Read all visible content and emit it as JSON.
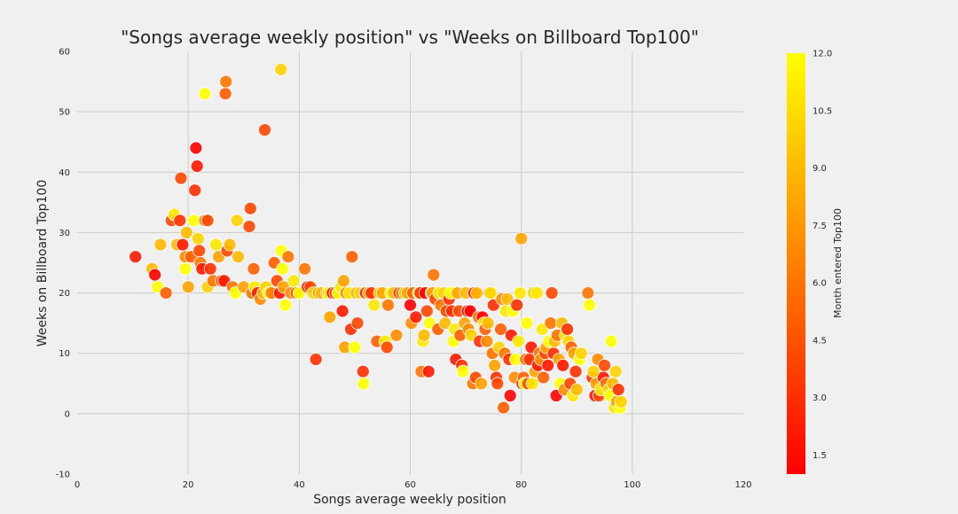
{
  "chart_data": {
    "type": "scatter",
    "title": "\"Songs average weekly position\" vs \"Weeks on Billboard Top100\"",
    "xlabel": "Songs average weekly position",
    "ylabel": "Weeks on Billboard Top100",
    "xlim": [
      0,
      120
    ],
    "ylim": [
      -10,
      60
    ],
    "xticks": [
      0,
      20,
      40,
      60,
      80,
      100,
      120
    ],
    "yticks": [
      -10,
      0,
      10,
      20,
      30,
      40,
      50,
      60
    ],
    "grid": true,
    "colorbar": {
      "label": "Month entered Top100",
      "range": [
        1,
        12
      ],
      "ticks": [
        "1.5",
        "3.0",
        "4.5",
        "6.0",
        "7.5",
        "9.0",
        "10.5",
        "12.0"
      ],
      "tick_values": [
        1.5,
        3.0,
        4.5,
        6.0,
        7.5,
        9.0,
        10.5,
        12.0
      ],
      "colormap": "autumn",
      "colors": [
        "#ff0000",
        "#ffff00"
      ]
    },
    "points": [
      [
        10.5,
        26,
        2
      ],
      [
        13.5,
        24,
        9
      ],
      [
        14,
        23,
        1
      ],
      [
        14.5,
        21,
        12
      ],
      [
        15,
        28,
        9
      ],
      [
        16,
        20,
        5
      ],
      [
        17,
        32,
        4
      ],
      [
        17.5,
        33,
        11
      ],
      [
        18,
        28,
        9
      ],
      [
        18.5,
        32,
        3
      ],
      [
        18.7,
        39,
        4
      ],
      [
        19,
        28,
        2
      ],
      [
        19.5,
        26,
        7
      ],
      [
        19.7,
        30,
        9
      ],
      [
        19.5,
        24,
        12
      ],
      [
        20,
        21,
        8
      ],
      [
        20.5,
        26,
        5
      ],
      [
        21,
        32,
        12
      ],
      [
        21.2,
        37,
        3
      ],
      [
        21.4,
        44,
        1
      ],
      [
        21.6,
        41,
        2
      ],
      [
        21.8,
        29,
        10
      ],
      [
        22,
        27,
        4
      ],
      [
        22.2,
        25,
        6
      ],
      [
        22.5,
        24,
        2
      ],
      [
        23,
        32,
        7
      ],
      [
        23.5,
        32,
        4
      ],
      [
        23,
        53,
        12
      ],
      [
        23.5,
        21,
        10
      ],
      [
        24,
        24,
        3
      ],
      [
        24.5,
        22,
        6
      ],
      [
        25,
        28,
        11
      ],
      [
        25.5,
        26,
        8
      ],
      [
        26,
        22,
        5
      ],
      [
        26.5,
        22,
        2
      ],
      [
        26.7,
        53,
        5
      ],
      [
        26.8,
        55,
        6
      ],
      [
        27,
        27,
        4
      ],
      [
        27.5,
        28,
        9
      ],
      [
        28,
        21,
        6
      ],
      [
        28.5,
        20,
        12
      ],
      [
        28.8,
        32,
        10
      ],
      [
        29,
        26,
        9
      ],
      [
        30,
        21,
        8
      ],
      [
        31,
        31,
        4
      ],
      [
        31.2,
        34,
        4
      ],
      [
        31.5,
        20,
        6
      ],
      [
        31.8,
        24,
        5
      ],
      [
        32,
        21,
        11
      ],
      [
        32.5,
        20,
        2
      ],
      [
        33,
        19,
        7
      ],
      [
        33.5,
        20,
        9
      ],
      [
        33.8,
        47,
        4
      ],
      [
        34,
        21,
        10
      ],
      [
        34.5,
        20,
        12
      ],
      [
        35,
        20,
        6
      ],
      [
        35.5,
        25,
        5
      ],
      [
        36,
        22,
        4
      ],
      [
        36.5,
        20,
        2
      ],
      [
        36.7,
        57,
        10
      ],
      [
        36.8,
        27,
        12
      ],
      [
        37,
        24,
        12
      ],
      [
        37.2,
        21,
        8
      ],
      [
        37.5,
        18,
        12
      ],
      [
        38,
        26,
        6
      ],
      [
        38.5,
        20,
        7
      ],
      [
        39,
        22,
        11
      ],
      [
        39.5,
        20,
        4
      ],
      [
        40,
        20,
        12
      ],
      [
        41,
        24,
        6
      ],
      [
        41.5,
        21,
        2
      ],
      [
        42,
        21,
        4
      ],
      [
        42.5,
        20,
        10
      ],
      [
        43,
        9,
        3
      ],
      [
        43.5,
        20,
        8
      ],
      [
        44,
        20,
        9
      ],
      [
        45,
        20,
        3
      ],
      [
        45.2,
        20,
        12
      ],
      [
        45.5,
        16,
        8
      ],
      [
        46,
        20,
        1
      ],
      [
        46.5,
        20,
        4
      ],
      [
        47,
        20,
        12
      ],
      [
        47.5,
        21,
        11
      ],
      [
        47.8,
        17,
        2
      ],
      [
        48,
        22,
        8
      ],
      [
        48.2,
        11,
        8
      ],
      [
        48.5,
        20,
        6
      ],
      [
        49,
        20,
        11
      ],
      [
        49.3,
        14,
        3
      ],
      [
        49.5,
        26,
        5
      ],
      [
        50,
        11,
        12
      ],
      [
        50.3,
        20,
        9
      ],
      [
        50.5,
        15,
        4
      ],
      [
        51,
        20,
        10
      ],
      [
        51.5,
        7,
        3
      ],
      [
        51.6,
        5,
        12
      ],
      [
        51.8,
        20,
        2
      ],
      [
        52,
        20,
        3
      ],
      [
        52.5,
        20,
        9
      ],
      [
        53,
        20,
        3
      ],
      [
        53.5,
        18,
        11
      ],
      [
        54,
        12,
        5
      ],
      [
        54.5,
        20,
        10
      ],
      [
        55,
        20,
        8
      ],
      [
        55.5,
        12,
        11
      ],
      [
        55.8,
        11,
        4
      ],
      [
        56,
        18,
        6
      ],
      [
        56.5,
        20,
        12
      ],
      [
        57,
        20,
        9
      ],
      [
        57.5,
        13,
        7
      ],
      [
        58,
        20,
        3
      ],
      [
        58.5,
        20,
        6
      ],
      [
        59,
        20,
        10
      ],
      [
        59.5,
        20,
        8
      ],
      [
        60,
        18,
        1
      ],
      [
        60.2,
        15,
        7
      ],
      [
        60.5,
        20,
        5
      ],
      [
        61,
        16,
        2
      ],
      [
        61.5,
        20,
        12
      ],
      [
        61.8,
        20,
        3
      ],
      [
        62,
        7,
        6
      ],
      [
        62.3,
        12,
        11
      ],
      [
        62.5,
        13,
        9
      ],
      [
        62.7,
        20,
        1
      ],
      [
        63,
        17,
        4
      ],
      [
        63.3,
        7,
        2
      ],
      [
        63.5,
        15,
        12
      ],
      [
        63.8,
        20,
        7
      ],
      [
        64,
        20,
        8
      ],
      [
        64.2,
        23,
        6
      ],
      [
        64.5,
        19,
        4
      ],
      [
        65,
        14,
        5
      ],
      [
        65.2,
        20,
        11
      ],
      [
        65.5,
        18,
        6
      ],
      [
        66,
        20,
        10
      ],
      [
        66.3,
        15,
        9
      ],
      [
        66.5,
        17,
        4
      ],
      [
        67,
        19,
        3
      ],
      [
        67.3,
        20,
        12
      ],
      [
        67.5,
        17,
        3
      ],
      [
        67.8,
        12,
        12
      ],
      [
        68,
        14,
        11
      ],
      [
        68.2,
        9,
        2
      ],
      [
        68.5,
        20,
        8
      ],
      [
        68.8,
        17,
        4
      ],
      [
        69,
        13,
        5
      ],
      [
        69.3,
        8,
        3
      ],
      [
        69.5,
        7,
        12
      ],
      [
        69.8,
        15,
        8
      ],
      [
        70,
        20,
        9
      ],
      [
        70.3,
        17,
        2
      ],
      [
        70.5,
        14,
        7
      ],
      [
        70.8,
        17,
        1
      ],
      [
        71,
        13,
        10
      ],
      [
        71.3,
        5,
        6
      ],
      [
        71.5,
        20,
        2
      ],
      [
        71.8,
        6,
        4
      ],
      [
        72,
        20,
        9
      ],
      [
        72.3,
        16,
        6
      ],
      [
        72.5,
        12,
        3
      ],
      [
        72.8,
        5,
        8
      ],
      [
        73,
        16,
        1
      ],
      [
        73.3,
        15,
        11
      ],
      [
        73.5,
        14,
        5
      ],
      [
        73.8,
        12,
        7
      ],
      [
        74,
        15,
        9
      ],
      [
        74.3,
        20,
        2
      ],
      [
        74.5,
        20,
        11
      ],
      [
        74.8,
        10,
        6
      ],
      [
        75,
        18,
        3
      ],
      [
        75.2,
        8,
        8
      ],
      [
        75.5,
        6,
        3
      ],
      [
        75.7,
        5,
        4
      ],
      [
        76,
        11,
        10
      ],
      [
        76.3,
        14,
        5
      ],
      [
        76.5,
        19,
        7
      ],
      [
        76.8,
        1,
        5
      ],
      [
        77,
        10,
        6
      ],
      [
        77.2,
        17,
        11
      ],
      [
        77.5,
        19,
        9
      ],
      [
        77.8,
        9,
        3
      ],
      [
        78,
        3,
        1
      ],
      [
        78.2,
        13,
        2
      ],
      [
        78.5,
        17,
        12
      ],
      [
        78.8,
        6,
        7
      ],
      [
        79,
        9,
        12
      ],
      [
        79.2,
        18,
        3
      ],
      [
        79.5,
        12,
        11
      ],
      [
        79.8,
        20,
        11
      ],
      [
        80,
        29,
        8
      ],
      [
        80.2,
        5,
        1
      ],
      [
        80.4,
        6,
        5
      ],
      [
        80.6,
        5,
        12
      ],
      [
        80.8,
        9,
        6
      ],
      [
        81,
        15,
        12
      ],
      [
        81.2,
        5,
        4
      ],
      [
        81.5,
        9,
        3
      ],
      [
        81.8,
        11,
        2
      ],
      [
        82,
        5,
        11
      ],
      [
        82.2,
        20,
        10
      ],
      [
        82.5,
        7,
        8
      ],
      [
        82.8,
        20,
        11
      ],
      [
        83,
        8,
        2
      ],
      [
        83.3,
        10,
        6
      ],
      [
        83.5,
        9,
        7
      ],
      [
        83.8,
        14,
        11
      ],
      [
        84,
        6,
        5
      ],
      [
        84.3,
        10,
        4
      ],
      [
        84.5,
        11,
        8
      ],
      [
        84.8,
        8,
        2
      ],
      [
        85,
        12,
        12
      ],
      [
        85.3,
        15,
        6
      ],
      [
        85.5,
        20,
        4
      ],
      [
        85.8,
        10,
        3
      ],
      [
        86,
        12,
        9
      ],
      [
        86.3,
        3,
        1
      ],
      [
        86.5,
        13,
        6
      ],
      [
        86.8,
        9,
        8
      ],
      [
        87,
        5,
        12
      ],
      [
        87.3,
        15,
        9
      ],
      [
        87.5,
        8,
        2
      ],
      [
        87.8,
        4,
        7
      ],
      [
        88,
        13,
        11
      ],
      [
        88.3,
        14,
        3
      ],
      [
        88.5,
        12,
        10
      ],
      [
        88.8,
        5,
        4
      ],
      [
        89,
        11,
        5
      ],
      [
        89.3,
        3,
        11
      ],
      [
        89.5,
        10,
        8
      ],
      [
        89.8,
        7,
        3
      ],
      [
        90,
        4,
        9
      ],
      [
        90.5,
        9,
        12
      ],
      [
        90.8,
        10,
        10
      ],
      [
        92,
        20,
        6
      ],
      [
        92.3,
        18,
        12
      ],
      [
        92.8,
        6,
        3
      ],
      [
        93,
        7,
        10
      ],
      [
        93.3,
        3,
        2
      ],
      [
        93.5,
        5,
        8
      ],
      [
        93.8,
        9,
        7
      ],
      [
        94,
        3,
        4
      ],
      [
        94.3,
        4,
        11
      ],
      [
        94.8,
        6,
        2
      ],
      [
        95,
        8,
        4
      ],
      [
        95.3,
        5,
        6
      ],
      [
        95.8,
        4,
        10
      ],
      [
        96,
        3,
        12
      ],
      [
        96.2,
        12,
        12
      ],
      [
        96.5,
        5,
        9
      ],
      [
        96.8,
        1,
        11
      ],
      [
        97,
        7,
        10
      ],
      [
        97.2,
        2,
        8
      ],
      [
        97.5,
        4,
        3
      ],
      [
        97.8,
        1,
        12
      ],
      [
        98,
        2,
        10
      ]
    ]
  }
}
